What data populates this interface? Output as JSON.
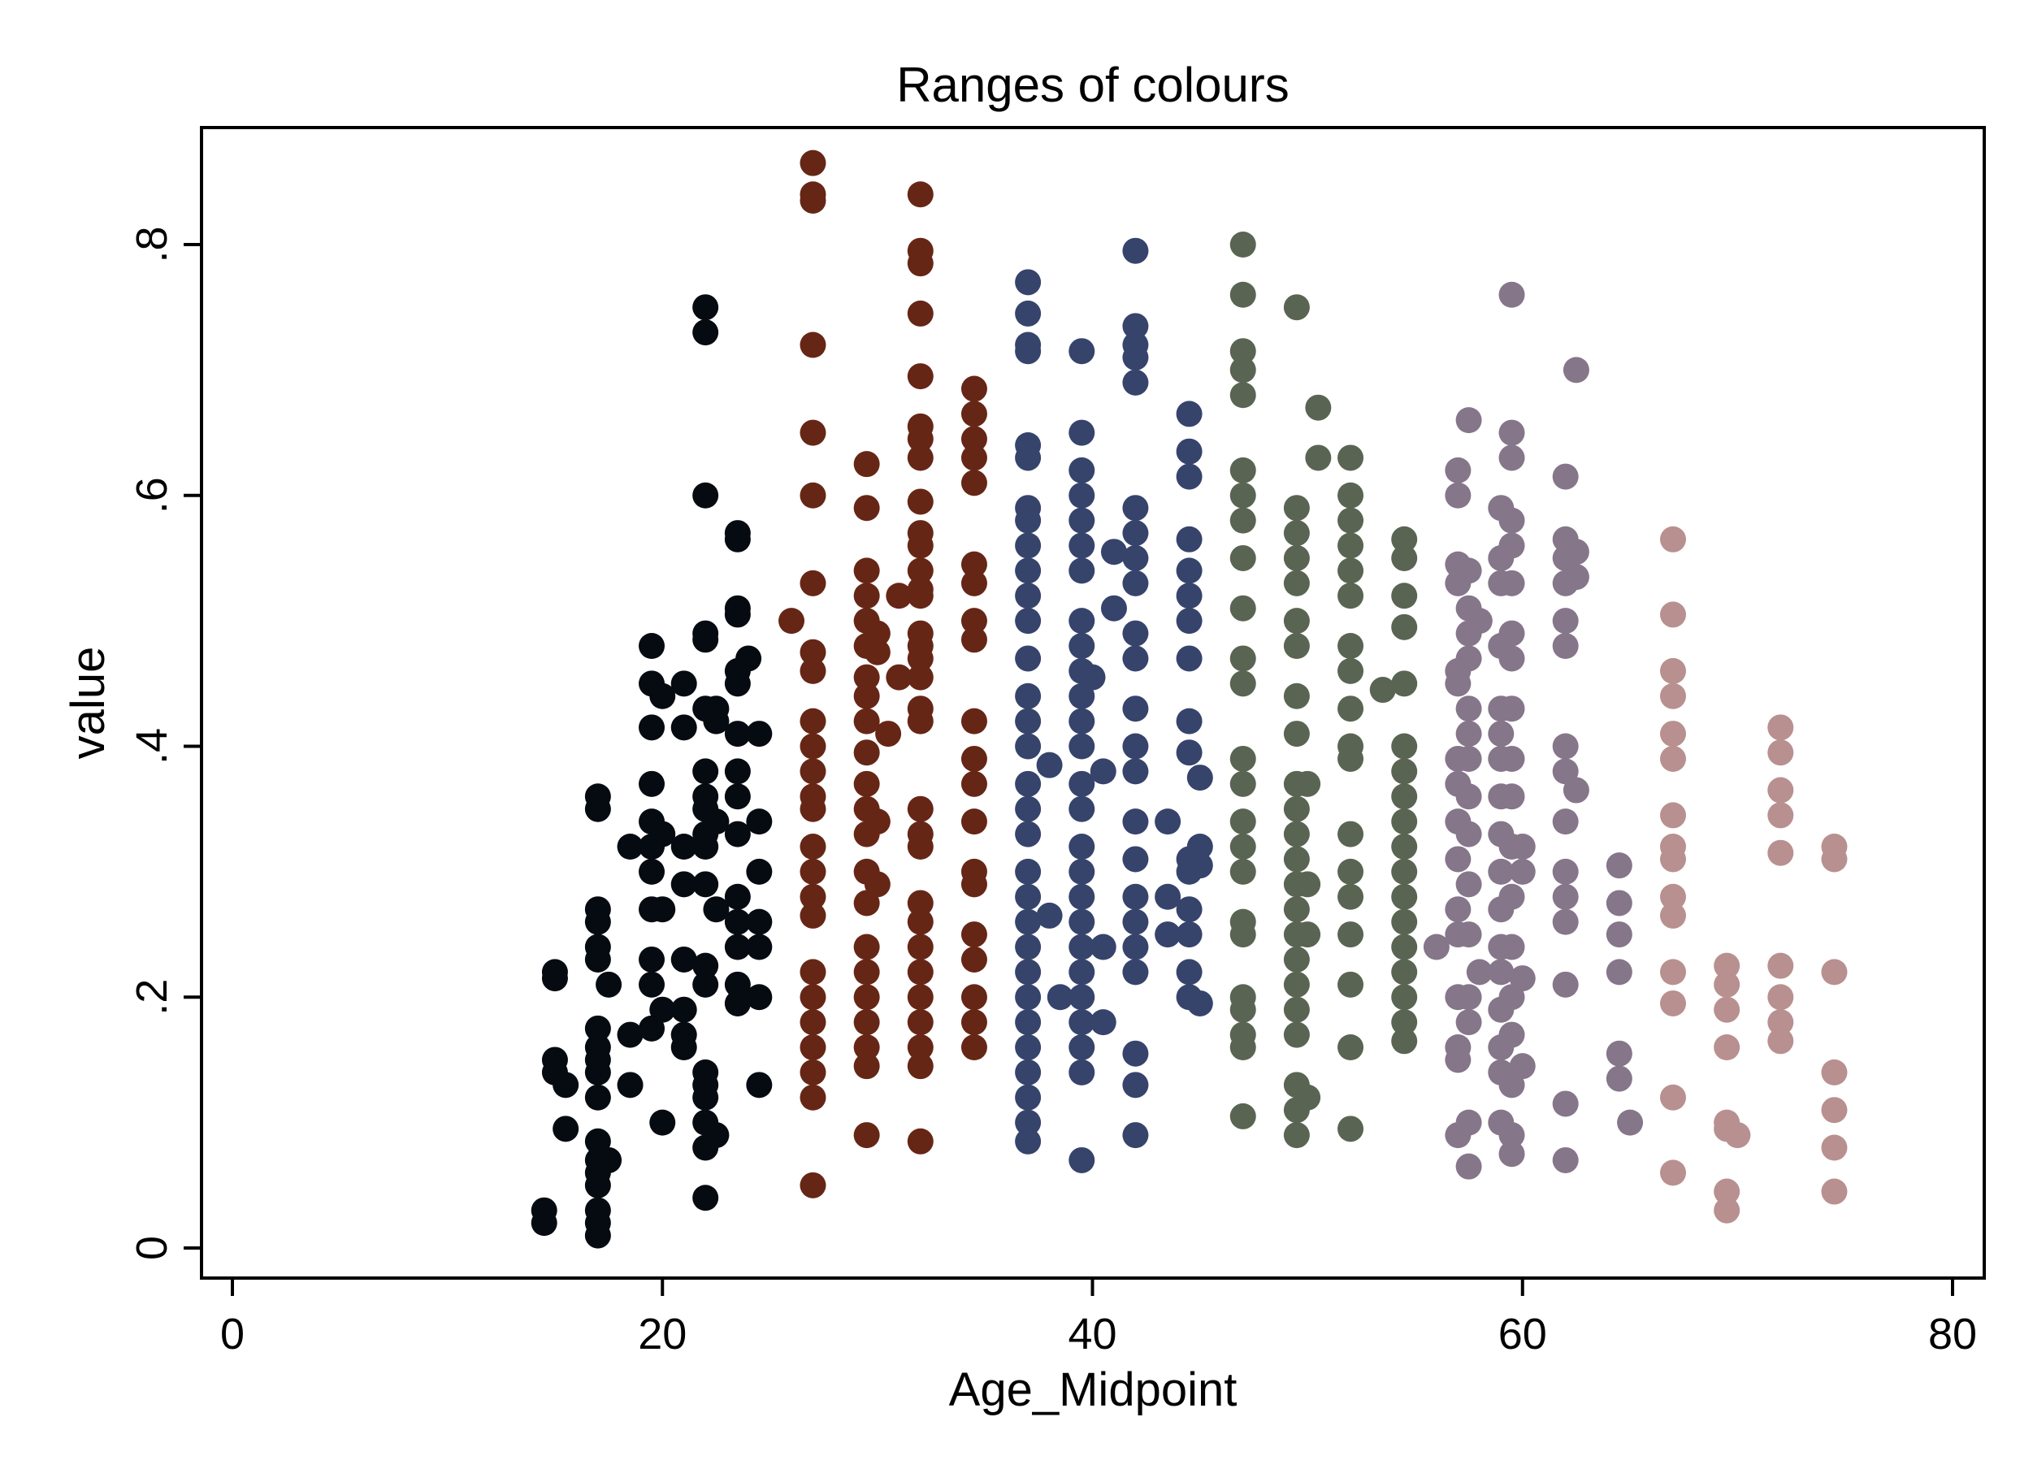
{
  "chart_data": {
    "type": "scatter",
    "title": "Ranges of colours",
    "xlabel": "Age_Midpoint",
    "ylabel": "value",
    "xlim": [
      0,
      80
    ],
    "ylim": [
      0,
      0.88
    ],
    "xticks": [
      0,
      20,
      40,
      60,
      80
    ],
    "xtick_labels": [
      "0",
      "20",
      "40",
      "60",
      "80"
    ],
    "yticks": [
      0,
      0.2,
      0.4,
      0.6,
      0.8
    ],
    "ytick_labels": [
      "0",
      ".2",
      ".4",
      ".6",
      ".8"
    ],
    "grid": false,
    "legend": "none",
    "groups": [
      {
        "color": "#060b12",
        "columns": [
          {
            "x": 14.5,
            "y": [
              0.03,
              0.02
            ]
          },
          {
            "x": 15,
            "y": [
              0.22,
              0.215,
              0.15,
              0.14
            ]
          },
          {
            "x": 15.5,
            "y": [
              0.13,
              0.095
            ]
          },
          {
            "x": 17,
            "y": [
              0.36,
              0.35,
              0.27,
              0.26,
              0.24,
              0.23,
              0.175,
              0.16,
              0.15,
              0.14,
              0.12,
              0.085,
              0.07,
              0.06,
              0.05,
              0.03,
              0.02,
              0.01
            ]
          },
          {
            "x": 17.5,
            "y": [
              0.21,
              0.07
            ]
          },
          {
            "x": 18.5,
            "y": [
              0.32,
              0.17,
              0.13
            ]
          },
          {
            "x": 19.5,
            "y": [
              0.48,
              0.45,
              0.415,
              0.37,
              0.34,
              0.32,
              0.3,
              0.27,
              0.23,
              0.21,
              0.175
            ]
          },
          {
            "x": 20,
            "y": [
              0.44,
              0.33,
              0.27,
              0.19,
              0.1
            ]
          },
          {
            "x": 21,
            "y": [
              0.45,
              0.415,
              0.32,
              0.29,
              0.23,
              0.19,
              0.16,
              0.17
            ]
          },
          {
            "x": 22,
            "y": [
              0.75,
              0.73,
              0.6,
              0.49,
              0.485,
              0.43,
              0.38,
              0.36,
              0.35,
              0.33,
              0.32,
              0.29,
              0.225,
              0.21,
              0.14,
              0.13,
              0.12,
              0.1,
              0.08,
              0.04
            ]
          },
          {
            "x": 22.5,
            "y": [
              0.43,
              0.42,
              0.34,
              0.27,
              0.09
            ]
          },
          {
            "x": 23.5,
            "y": [
              0.57,
              0.565,
              0.51,
              0.505,
              0.46,
              0.45,
              0.41,
              0.38,
              0.36,
              0.33,
              0.28,
              0.26,
              0.24,
              0.21,
              0.195
            ]
          },
          {
            "x": 24,
            "y": [
              0.47
            ]
          },
          {
            "x": 24.5,
            "y": [
              0.41,
              0.34,
              0.3,
              0.26,
              0.24,
              0.2,
              0.13
            ]
          }
        ]
      },
      {
        "color": "#662616",
        "columns": [
          {
            "x": 26,
            "y": [
              0.5
            ]
          },
          {
            "x": 27,
            "y": [
              0.865,
              0.84,
              0.835,
              0.72,
              0.65,
              0.6,
              0.53,
              0.475,
              0.46,
              0.42,
              0.4,
              0.38,
              0.36,
              0.35,
              0.32,
              0.3,
              0.28,
              0.265,
              0.22,
              0.2,
              0.18,
              0.16,
              0.14,
              0.12,
              0.05
            ]
          },
          {
            "x": 29.5,
            "y": [
              0.625,
              0.59,
              0.54,
              0.52,
              0.5,
              0.48,
              0.455,
              0.44,
              0.42,
              0.395,
              0.37,
              0.35,
              0.33,
              0.3,
              0.275,
              0.24,
              0.22,
              0.2,
              0.18,
              0.16,
              0.145,
              0.09
            ]
          },
          {
            "x": 30,
            "y": [
              0.49,
              0.475,
              0.34,
              0.29
            ]
          },
          {
            "x": 30.5,
            "y": [
              0.41
            ]
          },
          {
            "x": 31,
            "y": [
              0.52,
              0.455
            ]
          },
          {
            "x": 32,
            "y": [
              0.84,
              0.795,
              0.785,
              0.745,
              0.695,
              0.655,
              0.645,
              0.63,
              0.595,
              0.57,
              0.56,
              0.54,
              0.525,
              0.52,
              0.49,
              0.48,
              0.47,
              0.455,
              0.43,
              0.42,
              0.35,
              0.33,
              0.32,
              0.275,
              0.26,
              0.24,
              0.22,
              0.2,
              0.18,
              0.16,
              0.145,
              0.085
            ]
          },
          {
            "x": 34.5,
            "y": [
              0.685,
              0.665,
              0.645,
              0.63,
              0.61,
              0.545,
              0.53,
              0.5,
              0.485,
              0.42,
              0.39,
              0.37,
              0.34,
              0.3,
              0.29,
              0.25,
              0.23,
              0.2,
              0.18,
              0.16
            ]
          }
        ]
      },
      {
        "color": "#36446c",
        "columns": [
          {
            "x": 37,
            "y": [
              0.77,
              0.745,
              0.72,
              0.715,
              0.64,
              0.63,
              0.59,
              0.58,
              0.56,
              0.54,
              0.52,
              0.5,
              0.47,
              0.44,
              0.42,
              0.4,
              0.37,
              0.35,
              0.33,
              0.3,
              0.28,
              0.26,
              0.24,
              0.22,
              0.2,
              0.18,
              0.16,
              0.14,
              0.12,
              0.1,
              0.085
            ]
          },
          {
            "x": 38,
            "y": [
              0.385,
              0.265
            ]
          },
          {
            "x": 38.5,
            "y": [
              0.2
            ]
          },
          {
            "x": 39.5,
            "y": [
              0.715,
              0.65,
              0.62,
              0.6,
              0.58,
              0.56,
              0.54,
              0.5,
              0.48,
              0.46,
              0.44,
              0.42,
              0.4,
              0.37,
              0.35,
              0.32,
              0.3,
              0.28,
              0.26,
              0.24,
              0.22,
              0.2,
              0.18,
              0.16,
              0.14,
              0.07
            ]
          },
          {
            "x": 40,
            "y": [
              0.455
            ]
          },
          {
            "x": 40.5,
            "y": [
              0.38,
              0.24,
              0.18
            ]
          },
          {
            "x": 41,
            "y": [
              0.555,
              0.51
            ]
          },
          {
            "x": 42,
            "y": [
              0.795,
              0.735,
              0.72,
              0.71,
              0.69,
              0.59,
              0.57,
              0.55,
              0.53,
              0.49,
              0.47,
              0.43,
              0.4,
              0.38,
              0.34,
              0.31,
              0.28,
              0.26,
              0.24,
              0.22,
              0.155,
              0.13,
              0.09
            ]
          },
          {
            "x": 43.5,
            "y": [
              0.34,
              0.28,
              0.25
            ]
          },
          {
            "x": 44.5,
            "y": [
              0.665,
              0.635,
              0.615,
              0.565,
              0.54,
              0.52,
              0.5,
              0.47,
              0.42,
              0.395,
              0.31,
              0.3,
              0.27,
              0.25,
              0.22,
              0.2
            ]
          },
          {
            "x": 45,
            "y": [
              0.375,
              0.32,
              0.305,
              0.195
            ]
          }
        ]
      },
      {
        "color": "#596552",
        "columns": [
          {
            "x": 47,
            "y": [
              0.8,
              0.76,
              0.715,
              0.7,
              0.68,
              0.62,
              0.6,
              0.58,
              0.55,
              0.51,
              0.47,
              0.45,
              0.39,
              0.37,
              0.34,
              0.32,
              0.3,
              0.26,
              0.25,
              0.2,
              0.19,
              0.17,
              0.16,
              0.105
            ]
          },
          {
            "x": 49.5,
            "y": [
              0.75,
              0.59,
              0.57,
              0.55,
              0.53,
              0.5,
              0.48,
              0.44,
              0.41,
              0.37,
              0.35,
              0.33,
              0.31,
              0.29,
              0.27,
              0.25,
              0.23,
              0.21,
              0.19,
              0.17,
              0.13,
              0.11,
              0.09
            ]
          },
          {
            "x": 50,
            "y": [
              0.37,
              0.29,
              0.25,
              0.12
            ]
          },
          {
            "x": 50.5,
            "y": [
              0.67,
              0.63
            ]
          },
          {
            "x": 52,
            "y": [
              0.63,
              0.6,
              0.58,
              0.56,
              0.54,
              0.52,
              0.48,
              0.46,
              0.43,
              0.4,
              0.39,
              0.33,
              0.3,
              0.28,
              0.25,
              0.21,
              0.16,
              0.095
            ]
          },
          {
            "x": 53.5,
            "y": [
              0.445
            ]
          },
          {
            "x": 54.5,
            "y": [
              0.565,
              0.55,
              0.52,
              0.495,
              0.45,
              0.4,
              0.38,
              0.36,
              0.34,
              0.32,
              0.3,
              0.28,
              0.26,
              0.24,
              0.22,
              0.2,
              0.18,
              0.165
            ]
          }
        ]
      },
      {
        "color": "#85768a",
        "columns": [
          {
            "x": 56,
            "y": [
              0.24
            ]
          },
          {
            "x": 57,
            "y": [
              0.62,
              0.6,
              0.545,
              0.53,
              0.46,
              0.45,
              0.39,
              0.37,
              0.34,
              0.31,
              0.27,
              0.25,
              0.2,
              0.16,
              0.15,
              0.09
            ]
          },
          {
            "x": 57.5,
            "y": [
              0.66,
              0.54,
              0.51,
              0.49,
              0.47,
              0.43,
              0.41,
              0.39,
              0.36,
              0.33,
              0.29,
              0.25,
              0.2,
              0.18,
              0.1,
              0.065
            ]
          },
          {
            "x": 58,
            "y": [
              0.5,
              0.22
            ]
          },
          {
            "x": 59,
            "y": [
              0.59,
              0.55,
              0.53,
              0.48,
              0.43,
              0.41,
              0.39,
              0.36,
              0.33,
              0.3,
              0.27,
              0.24,
              0.22,
              0.19,
              0.16,
              0.14,
              0.1
            ]
          },
          {
            "x": 59.5,
            "y": [
              0.76,
              0.65,
              0.63,
              0.58,
              0.56,
              0.53,
              0.49,
              0.47,
              0.43,
              0.39,
              0.36,
              0.32,
              0.28,
              0.24,
              0.2,
              0.17,
              0.13,
              0.09,
              0.075
            ]
          },
          {
            "x": 60,
            "y": [
              0.32,
              0.3,
              0.215,
              0.145
            ]
          },
          {
            "x": 62,
            "y": [
              0.615,
              0.565,
              0.55,
              0.53,
              0.5,
              0.48,
              0.4,
              0.38,
              0.34,
              0.3,
              0.28,
              0.26,
              0.21,
              0.115,
              0.07
            ]
          },
          {
            "x": 62.5,
            "y": [
              0.7,
              0.555,
              0.535,
              0.365
            ]
          },
          {
            "x": 64.5,
            "y": [
              0.305,
              0.275,
              0.25,
              0.22,
              0.155,
              0.135
            ]
          },
          {
            "x": 65,
            "y": [
              0.1
            ]
          }
        ]
      },
      {
        "color": "#b89090",
        "columns": [
          {
            "x": 67,
            "y": [
              0.565,
              0.505,
              0.46,
              0.44,
              0.41,
              0.39,
              0.345,
              0.32,
              0.31,
              0.28,
              0.265,
              0.22,
              0.195,
              0.12,
              0.06
            ]
          },
          {
            "x": 69.5,
            "y": [
              0.225,
              0.21,
              0.19,
              0.16,
              0.1,
              0.095,
              0.045,
              0.03
            ]
          },
          {
            "x": 70,
            "y": [
              0.09
            ]
          },
          {
            "x": 72,
            "y": [
              0.415,
              0.395,
              0.365,
              0.345,
              0.315,
              0.225,
              0.2,
              0.18,
              0.165
            ]
          },
          {
            "x": 74.5,
            "y": [
              0.32,
              0.31,
              0.22,
              0.14,
              0.11,
              0.08,
              0.045
            ]
          }
        ]
      }
    ]
  }
}
